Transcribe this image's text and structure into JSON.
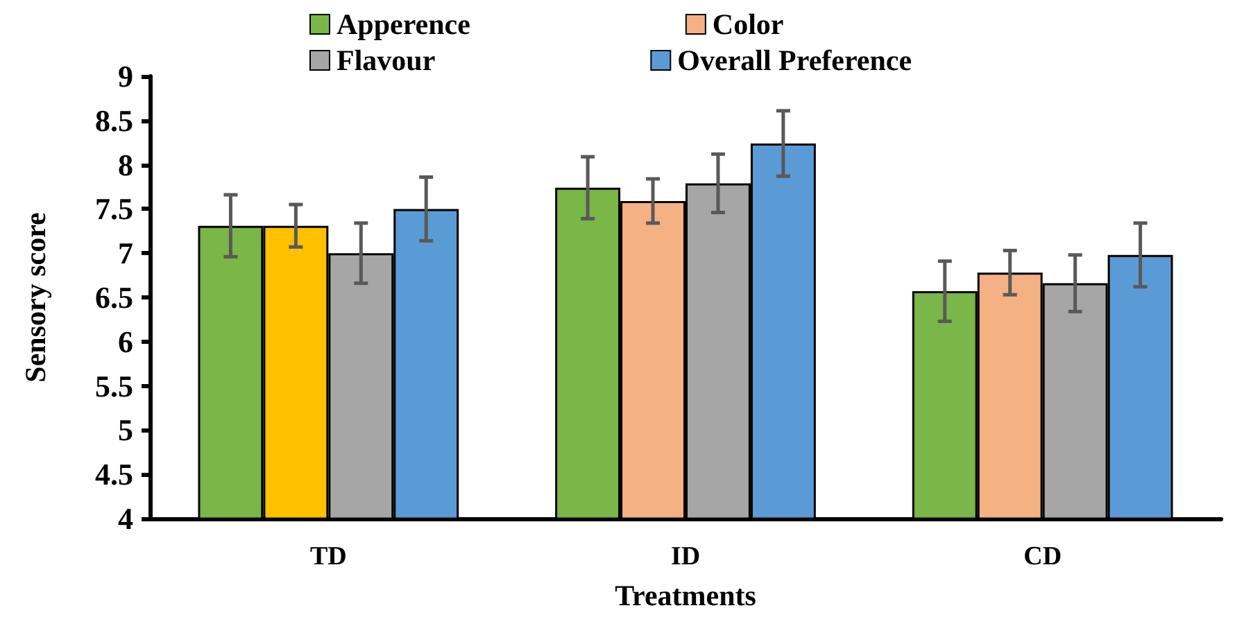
{
  "chart_data": {
    "type": "bar",
    "xlabel": "Treatments",
    "ylabel": "Sensory score",
    "categories": [
      "TD",
      "ID",
      "CD"
    ],
    "series": [
      {
        "name": "Apperence",
        "color": "#7ab648",
        "values": [
          7.31,
          7.74,
          6.57
        ],
        "errors": [
          0.35,
          0.35,
          0.34
        ]
      },
      {
        "name": "Color",
        "color": "#f4b183",
        "colors": [
          "#ffc000",
          "#f4b183",
          "#f4b183"
        ],
        "values": [
          7.31,
          7.59,
          6.78
        ],
        "errors": [
          0.24,
          0.25,
          0.25
        ]
      },
      {
        "name": "Flavour",
        "color": "#a6a6a6",
        "values": [
          7.0,
          7.79,
          6.66
        ],
        "errors": [
          0.34,
          0.33,
          0.32
        ]
      },
      {
        "name": "Overall Preference",
        "color": "#5b9bd5",
        "values": [
          7.5,
          8.24,
          6.98
        ],
        "errors": [
          0.36,
          0.37,
          0.36
        ]
      }
    ],
    "ylim": [
      4,
      9
    ],
    "yticks": [
      4,
      4.5,
      5,
      5.5,
      6,
      6.5,
      7,
      7.5,
      8,
      8.5,
      9
    ],
    "grid": false,
    "legend": "top"
  }
}
